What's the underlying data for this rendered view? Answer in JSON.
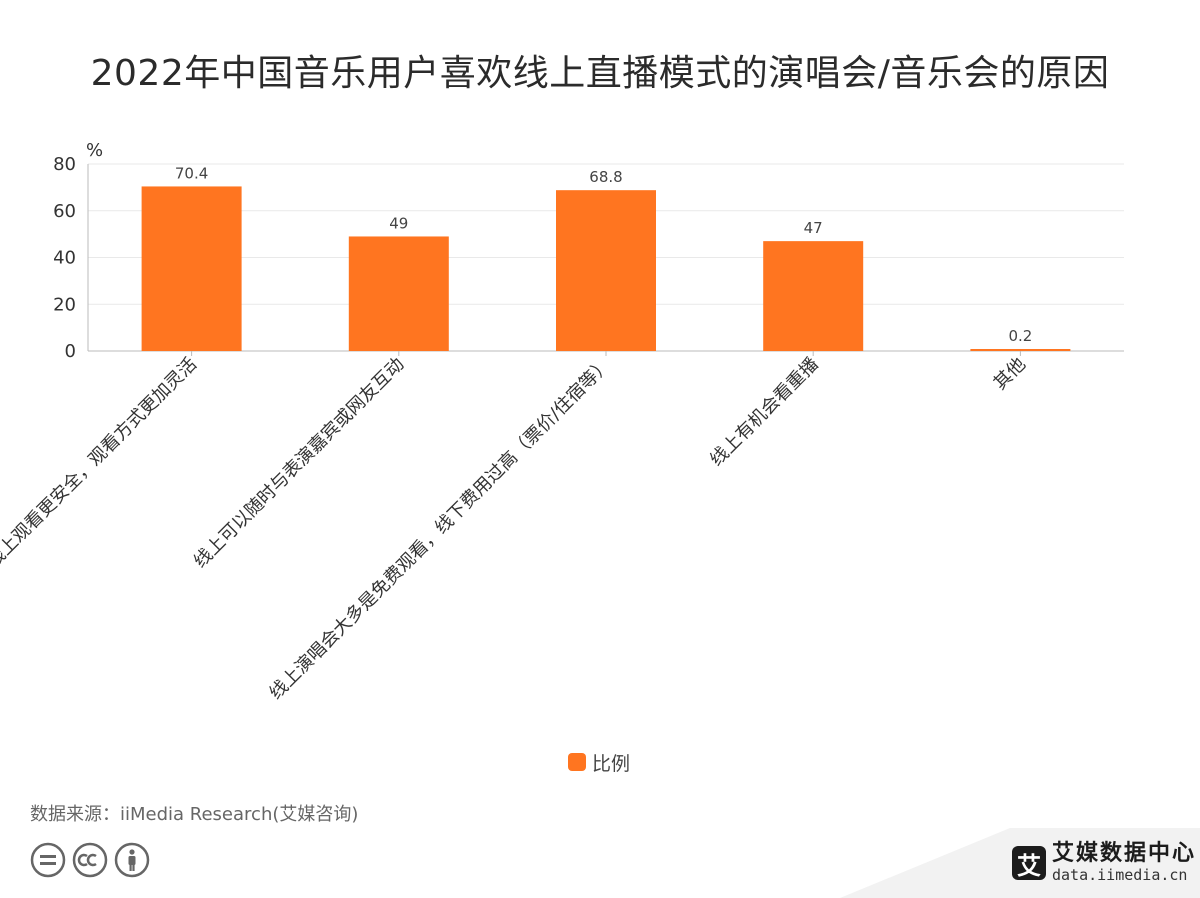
{
  "title": "2022年中国音乐用户喜欢线上直播模式的演唱会/音乐会的原因",
  "chart_data": {
    "type": "bar",
    "ylabel": "%",
    "ylim": [
      0,
      80
    ],
    "yticks": [
      0,
      20,
      40,
      60,
      80
    ],
    "categories": [
      "线上观看更安全，观看方式更加灵活",
      "线上可以随时与表演嘉宾或网友互动",
      "线上演唱会大多是免费观看，线下费用过高（票价/住宿等）",
      "线上有机会看重播",
      "其他"
    ],
    "series": [
      {
        "name": "比例",
        "values": [
          70.4,
          49,
          68.8,
          47,
          0.2
        ],
        "labels": [
          "70.4",
          "49",
          "68.8",
          "47",
          "0.2"
        ]
      }
    ],
    "grid": true,
    "legend": "bottom-center"
  },
  "colors": {
    "bar": "#ff7520",
    "grid": "#e9e9e9",
    "axis": "#bbbbbb"
  },
  "source": "数据来源：iiMedia Research(艾媒咨询)",
  "icons": [
    "equals-icon",
    "cc-icon",
    "person-icon"
  ],
  "brand": {
    "logo_char": "艾",
    "name": "艾媒数据中心",
    "url": "data.iimedia.cn"
  }
}
